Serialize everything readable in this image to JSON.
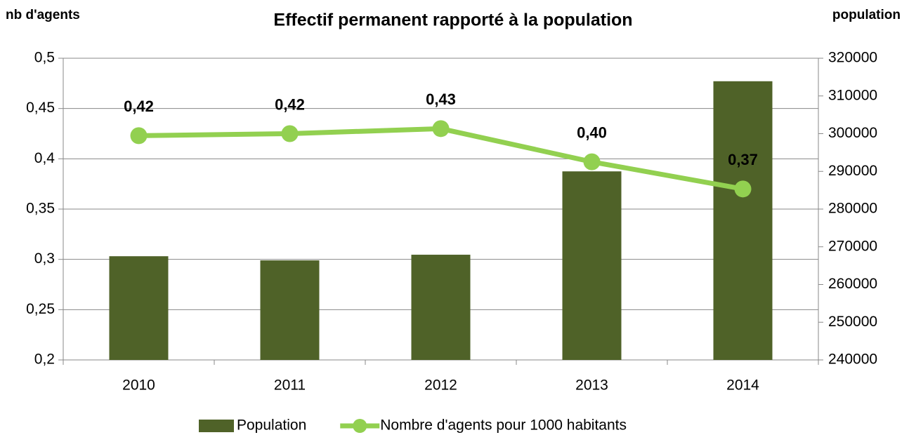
{
  "chart_data": {
    "type": "combo",
    "title": "Effectif permanent rapporté à la population",
    "ylabel": "nb d'agents",
    "y2label": "population",
    "categories": [
      "2010",
      "2011",
      "2012",
      "2013",
      "2014"
    ],
    "series": [
      {
        "name": "Population",
        "type": "bar",
        "axis": "y2",
        "color": "#4f6228",
        "values": [
          267500,
          266400,
          267900,
          290000,
          313900
        ]
      },
      {
        "name": "Nombre d'agents pour 1000 habitants",
        "type": "line",
        "axis": "y",
        "color": "#92d050",
        "values": [
          0.423,
          0.425,
          0.43,
          0.397,
          0.37
        ],
        "value_labels": [
          "0,42",
          "0,42",
          "0,43",
          "0,40",
          "0,37"
        ]
      }
    ],
    "ylim": [
      0.2,
      0.5
    ],
    "yticks": [
      {
        "value": 0.2,
        "label": "0,2"
      },
      {
        "value": 0.25,
        "label": "0,25"
      },
      {
        "value": 0.3,
        "label": "0,3"
      },
      {
        "value": 0.35,
        "label": "0,35"
      },
      {
        "value": 0.4,
        "label": "0,4"
      },
      {
        "value": 0.45,
        "label": "0,45"
      },
      {
        "value": 0.5,
        "label": "0,5"
      }
    ],
    "y2lim": [
      240000,
      320000
    ],
    "y2ticks": [
      240000,
      250000,
      260000,
      270000,
      280000,
      290000,
      300000,
      310000,
      320000
    ],
    "grid": true,
    "legend": "bottom"
  }
}
